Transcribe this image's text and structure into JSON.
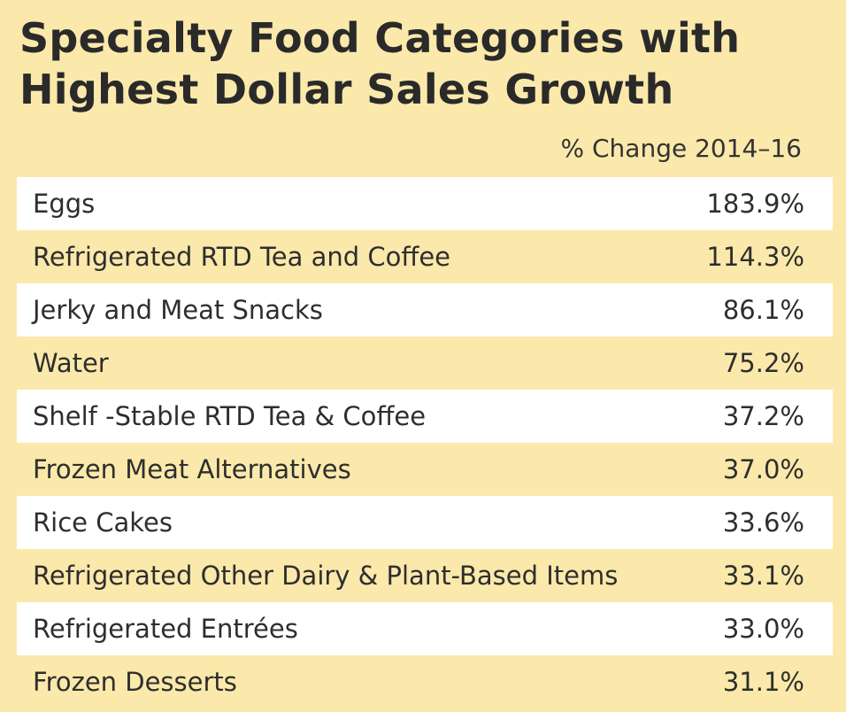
{
  "chart_data": {
    "type": "table",
    "title": "Specialty Food Categories with Highest Dollar Sales Growth",
    "title_lines": [
      "Specialty Food Categories with",
      "Highest Dollar Sales Growth"
    ],
    "column_header": "% Change 2014–16",
    "rows": [
      {
        "category": "Eggs",
        "value": "183.9%"
      },
      {
        "category": "Refrigerated RTD Tea and Coffee",
        "value": "114.3%"
      },
      {
        "category": "Jerky and Meat Snacks",
        "value": "86.1%"
      },
      {
        "category": "Water",
        "value": "75.2%"
      },
      {
        "category": "Shelf -Stable RTD Tea & Coffee",
        "value": "37.2%"
      },
      {
        "category": "Frozen Meat Alternatives",
        "value": "37.0%"
      },
      {
        "category": "Rice Cakes",
        "value": "33.6%"
      },
      {
        "category": "Refrigerated Other Dairy & Plant-Based Items",
        "value": "33.1%"
      },
      {
        "category": "Refrigerated Entrées",
        "value": "33.0%"
      },
      {
        "category": "Frozen Desserts",
        "value": "31.1%"
      }
    ],
    "categories": [
      "Eggs",
      "Refrigerated RTD Tea and Coffee",
      "Jerky and Meat Snacks",
      "Water",
      "Shelf -Stable RTD Tea & Coffee",
      "Frozen Meat Alternatives",
      "Rice Cakes",
      "Refrigerated Other Dairy & Plant-Based Items",
      "Refrigerated Entrées",
      "Frozen Desserts"
    ],
    "values": [
      183.9,
      114.3,
      86.1,
      75.2,
      37.2,
      37.0,
      33.6,
      33.1,
      33.0,
      31.1
    ]
  },
  "colors": {
    "background": "#fbe9ab",
    "row_shade": "#ffffff",
    "text": "#2e2e2e"
  }
}
